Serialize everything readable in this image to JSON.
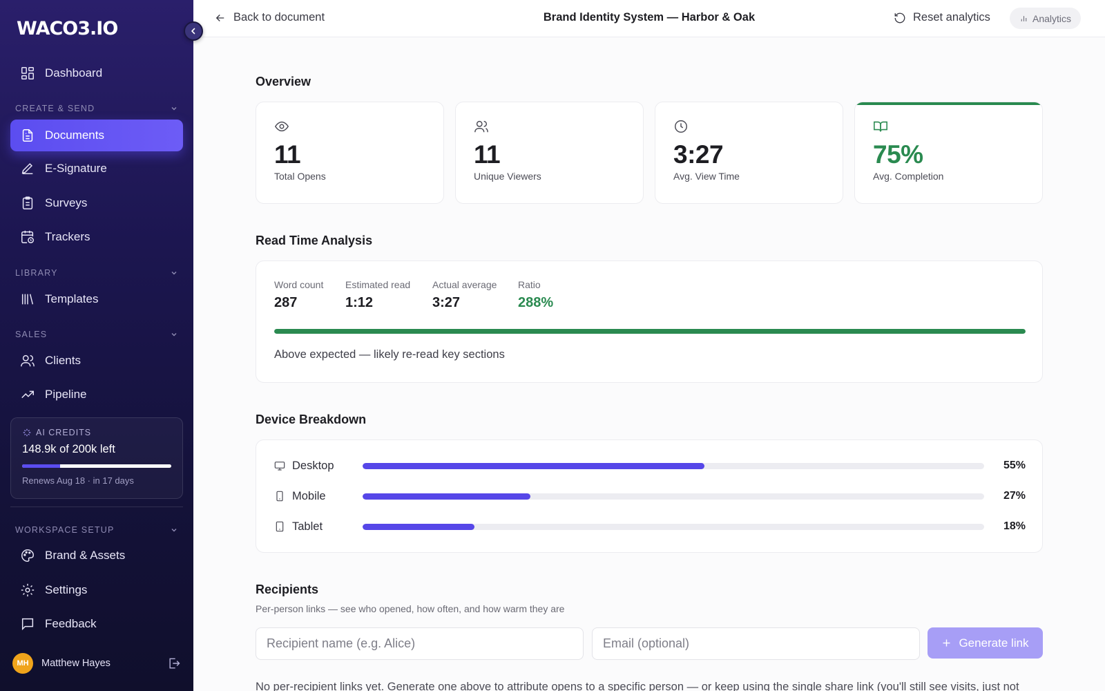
{
  "app": {
    "logo": "WACO3.IO"
  },
  "sidebar": {
    "dashboard": "Dashboard",
    "sections": {
      "create_send": "CREATE & SEND",
      "library": "LIBRARY",
      "sales": "SALES",
      "workspace": "WORKSPACE SETUP"
    },
    "items": {
      "documents": "Documents",
      "esignature": "E-Signature",
      "surveys": "Surveys",
      "trackers": "Trackers",
      "templates": "Templates",
      "clients": "Clients",
      "pipeline": "Pipeline",
      "brand": "Brand & Assets",
      "settings": "Settings",
      "feedback": "Feedback"
    },
    "active_item": "documents",
    "credits": {
      "title": "AI CREDITS",
      "amount": "148.9k of 200k left",
      "used_fraction": 0.2555,
      "renew": "Renews Aug 18 · in 17 days"
    },
    "user": {
      "initials": "MH",
      "name": "Matthew Hayes"
    }
  },
  "topbar": {
    "back": "Back to document",
    "title": "Brand Identity System — Harbor & Oak",
    "reset": "Reset analytics",
    "analytics": "Analytics"
  },
  "overview": {
    "heading": "Overview",
    "stats": [
      {
        "value": "11",
        "label": "Total Opens",
        "icon": "eye-icon"
      },
      {
        "value": "11",
        "label": "Unique Viewers",
        "icon": "users-icon"
      },
      {
        "value": "3:27",
        "label": "Avg. View Time",
        "icon": "clock-icon"
      },
      {
        "value": "75%",
        "label": "Avg. Completion",
        "icon": "book-open-icon"
      }
    ]
  },
  "read_time": {
    "heading": "Read Time Analysis",
    "metrics": [
      {
        "label": "Word count",
        "value": "287"
      },
      {
        "label": "Estimated read",
        "value": "1:12"
      },
      {
        "label": "Actual average",
        "value": "3:27"
      },
      {
        "label": "Ratio",
        "value": "288%"
      }
    ],
    "bar_fill_percent": 100,
    "note": "Above expected — likely re-read key sections",
    "accent_color": "#2a8a50"
  },
  "devices": {
    "heading": "Device Breakdown",
    "items": [
      {
        "name": "Desktop",
        "percent": 55,
        "label": "55%",
        "icon": "monitor-icon"
      },
      {
        "name": "Mobile",
        "percent": 27,
        "label": "27%",
        "icon": "smartphone-icon"
      },
      {
        "name": "Tablet",
        "percent": 18,
        "label": "18%",
        "icon": "tablet-icon"
      }
    ],
    "bar_color": "#5647e8"
  },
  "recipients": {
    "heading": "Recipients",
    "subtitle": "Per-person links — see who opened, how often, and how warm they are",
    "name_placeholder": "Recipient name (e.g. Alice)",
    "email_placeholder": "Email (optional)",
    "generate": "Generate link",
    "empty_note": "No per-recipient links yet. Generate one above to attribute opens to a specific person — or keep using the single share link (you'll still see visits, just not"
  }
}
